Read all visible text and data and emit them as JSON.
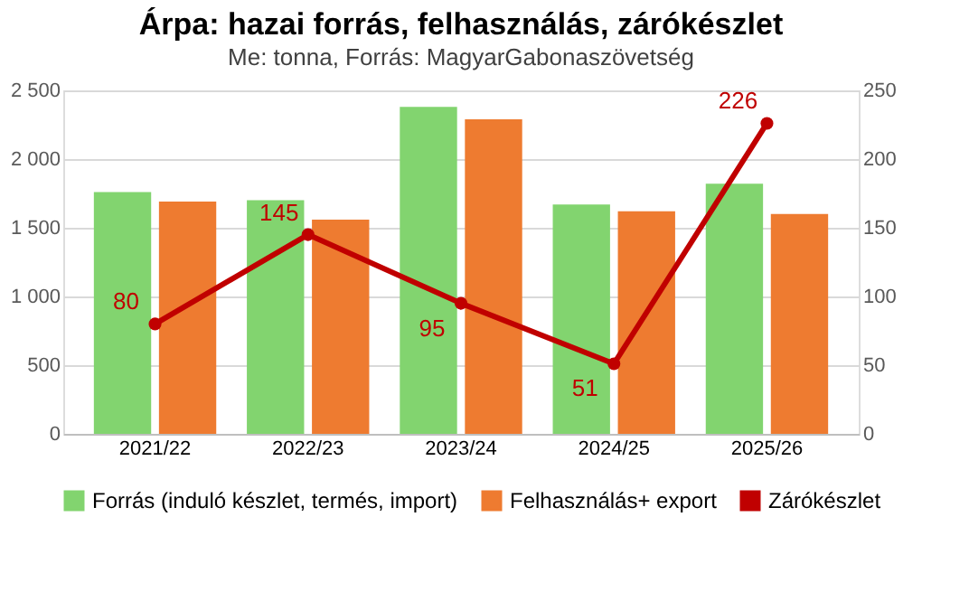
{
  "chart_data": {
    "type": "bar",
    "title": "Árpa: hazai forrás, felhasználás, zárókészlet",
    "subtitle": "Me: tonna, Forrás: MagyarGabonaszövetség",
    "categories": [
      "2021/22",
      "2022/23",
      "2023/24",
      "2024/25",
      "2025/26"
    ],
    "series": [
      {
        "name": "Forrás (induló készlet, termés, import)",
        "color": "#82d46f",
        "values": [
          1760,
          1700,
          2380,
          1670,
          1820
        ]
      },
      {
        "name": "Felhasználás+ export",
        "color": "#ee7b30",
        "values": [
          1690,
          1560,
          2290,
          1620,
          1600
        ]
      },
      {
        "name": "Zárókészlet",
        "type": "line",
        "axis": "y2",
        "color": "#c00000",
        "marker": "circle",
        "line_style": "solid",
        "values": [
          80,
          145,
          95,
          51,
          226
        ],
        "value_labels": [
          "80",
          "145",
          "95",
          "51",
          "226"
        ]
      }
    ],
    "ylim": [
      0,
      2500
    ],
    "yticks": [
      0,
      {
        "value": 500,
        "label": "500"
      },
      {
        "value": 1000,
        "label": "1 000"
      },
      {
        "value": 1500,
        "label": "1 500"
      },
      {
        "value": 2000,
        "label": "2 000"
      },
      {
        "value": 2500,
        "label": "2 500"
      }
    ],
    "y2lim": [
      0,
      250
    ],
    "y2ticks": [
      0,
      50,
      100,
      150,
      200,
      250
    ],
    "grid": "y",
    "legend": "bottom"
  }
}
